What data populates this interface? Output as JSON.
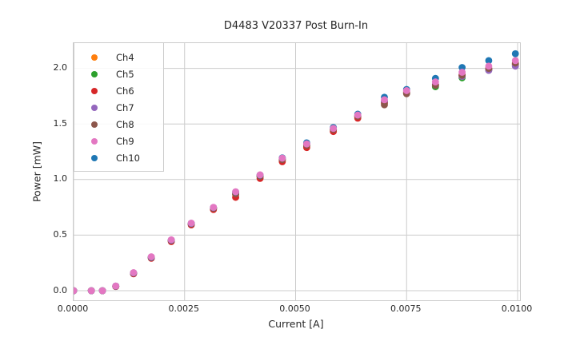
{
  "chart_data": {
    "type": "scatter",
    "title": "D4483 V20337 Post Burn-In",
    "xlabel": "Current [A]",
    "ylabel": "Power [mW]",
    "grid": true,
    "legend_position": "upper-left",
    "xlim": [
      0,
      0.010054
    ],
    "ylim": [
      -0.0862,
      2.227
    ],
    "x_ticks": [
      0.0,
      0.0025,
      0.005,
      0.0075,
      0.01
    ],
    "x_tick_labels": [
      "0.0000",
      "0.0025",
      "0.0050",
      "0.0075",
      "0.0100"
    ],
    "y_ticks": [
      0.0,
      0.5,
      1.0,
      1.5,
      2.0
    ],
    "y_tick_labels": [
      "0.0",
      "0.5",
      "1.0",
      "1.5",
      "2.0"
    ],
    "x": [
      0.0,
      0.0004,
      0.00065,
      0.00095,
      0.00135,
      0.00175,
      0.0022,
      0.00265,
      0.00315,
      0.00365,
      0.0042,
      0.0047,
      0.00525,
      0.00585,
      0.0064,
      0.007,
      0.0075,
      0.00815,
      0.00875,
      0.00935,
      0.00995
    ],
    "series": [
      {
        "name": "Ch4",
        "color": "#ff7f0e",
        "values": [
          0,
          0,
          0,
          0.039,
          0.155,
          0.295,
          0.448,
          0.598,
          0.738,
          0.865,
          1.025,
          1.175,
          1.3,
          1.445,
          1.565,
          1.695,
          1.785,
          1.85,
          1.935,
          1.99,
          2.025
        ]
      },
      {
        "name": "Ch5",
        "color": "#2ca02c",
        "values": [
          0,
          0,
          0,
          0.04,
          0.157,
          0.297,
          0.45,
          0.6,
          0.74,
          0.87,
          1.028,
          1.178,
          1.305,
          1.448,
          1.568,
          1.698,
          1.78,
          1.835,
          1.915,
          1.985,
          2.035
        ]
      },
      {
        "name": "Ch6",
        "color": "#d62728",
        "values": [
          0,
          0,
          0,
          0.038,
          0.152,
          0.292,
          0.442,
          0.592,
          0.73,
          0.84,
          1.01,
          1.16,
          1.288,
          1.432,
          1.552,
          1.688,
          1.778,
          1.852,
          1.94,
          1.995,
          2.04
        ]
      },
      {
        "name": "Ch7",
        "color": "#9467bd",
        "values": [
          0,
          0,
          0,
          0.041,
          0.16,
          0.3,
          0.455,
          0.605,
          0.748,
          0.885,
          1.04,
          1.19,
          1.318,
          1.455,
          1.575,
          1.705,
          1.795,
          1.855,
          1.928,
          1.982,
          2.02
        ]
      },
      {
        "name": "Ch8",
        "color": "#8c564b",
        "values": [
          0,
          0,
          0,
          0.04,
          0.158,
          0.298,
          0.452,
          0.602,
          0.742,
          0.872,
          1.03,
          1.18,
          1.308,
          1.45,
          1.57,
          1.672,
          1.772,
          1.848,
          1.938,
          2.0,
          2.048
        ]
      },
      {
        "name": "Ch9",
        "color": "#e377c2",
        "values": [
          0,
          0,
          0,
          0.042,
          0.162,
          0.305,
          0.458,
          0.608,
          0.75,
          0.89,
          1.042,
          1.192,
          1.32,
          1.46,
          1.58,
          1.718,
          1.8,
          1.878,
          1.965,
          2.02,
          2.07
        ]
      },
      {
        "name": "Ch10",
        "color": "#1f77b4",
        "values": [
          0,
          0,
          0,
          0.041,
          0.16,
          0.302,
          0.455,
          0.605,
          0.748,
          0.888,
          1.04,
          1.195,
          1.33,
          1.468,
          1.588,
          1.74,
          1.81,
          1.91,
          2.008,
          2.07,
          2.132
        ]
      }
    ],
    "draw_order": [
      "Ch4",
      "Ch5",
      "Ch6",
      "Ch7",
      "Ch8",
      "Ch10",
      "Ch9"
    ],
    "marker_radius_px": 4.4
  }
}
